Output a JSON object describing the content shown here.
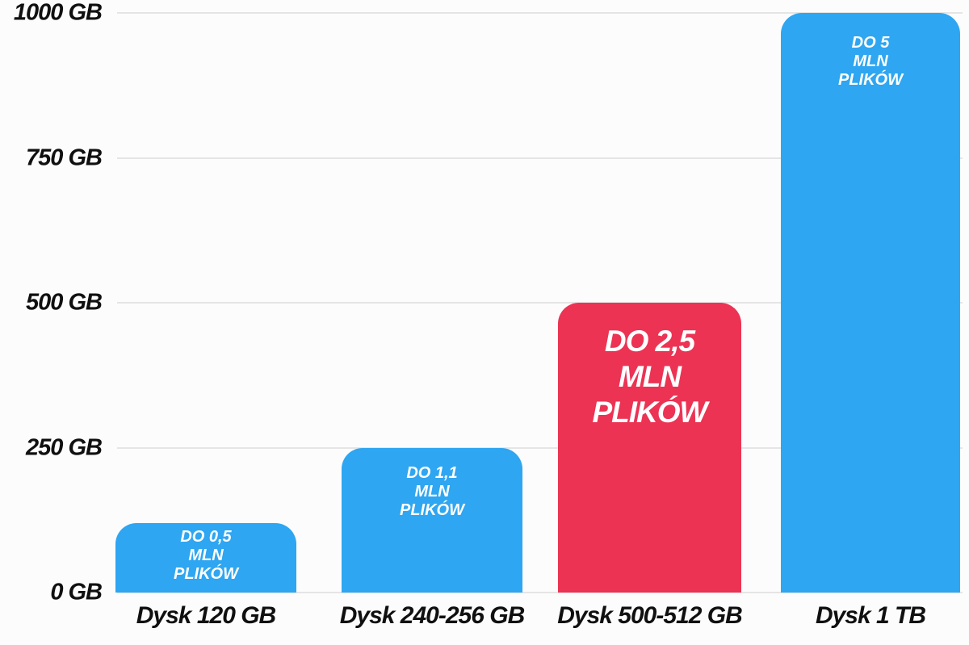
{
  "chart_data": {
    "type": "bar",
    "title": "",
    "xlabel": "",
    "ylabel": "",
    "unit": "GB",
    "categories": [
      "Dysk 120 GB",
      "Dysk 240-256 GB",
      "Dysk 500-512 GB",
      "Dysk 1 TB"
    ],
    "values": [
      120,
      250,
      500,
      1000
    ],
    "bar_annotations": [
      [
        "DO 0,5",
        "MLN",
        "PLIKÓW"
      ],
      [
        "DO 1,1",
        "MLN",
        "PLIKÓW"
      ],
      [
        "DO 2,5",
        "MLN",
        "PLIKÓW"
      ],
      [
        "DO 5",
        "MLN",
        "PLIKÓW"
      ]
    ],
    "emphasized_bar_index": 2,
    "yticks": [
      {
        "value": 1000,
        "label": "1000 GB"
      },
      {
        "value": 750,
        "label": "750 GB"
      },
      {
        "value": 500,
        "label": "500 GB"
      },
      {
        "value": 250,
        "label": "250 GB"
      },
      {
        "value": 0,
        "label": "0 GB"
      }
    ],
    "ylim": [
      0,
      1000
    ],
    "grid": true,
    "legend": false,
    "colors": {
      "bar_default": "#2EA6F1",
      "bar_highlight": "#EC3354",
      "bar_label_text": "#FFFFFF",
      "axis_text": "#101010",
      "gridline": "#E5E5E5",
      "background": "#FCFCFC"
    }
  }
}
